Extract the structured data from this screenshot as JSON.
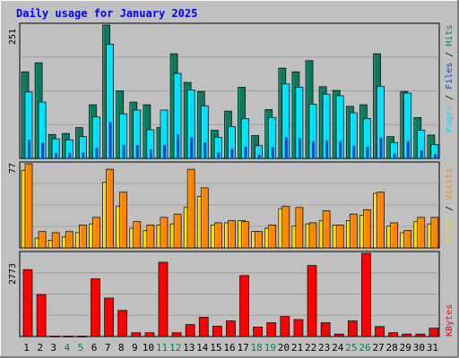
{
  "chart_data": {
    "type": "bar",
    "title": "Daily usage for January 2025",
    "x": [
      "1",
      "2",
      "3",
      "4",
      "5",
      "6",
      "7",
      "8",
      "9",
      "10",
      "11",
      "12",
      "13",
      "14",
      "15",
      "16",
      "17",
      "18",
      "19",
      "20",
      "21",
      "22",
      "23",
      "24",
      "25",
      "26",
      "27",
      "28",
      "29",
      "30",
      "31"
    ],
    "weekend_days": [
      "4",
      "5",
      "11",
      "12",
      "18",
      "19",
      "25",
      "26"
    ],
    "panels": [
      {
        "name": "pages-files-hits",
        "ymax_label": "251",
        "ymax": 251,
        "labels": [
          "Pages",
          "Files",
          "Hits"
        ],
        "series": [
          {
            "name": "Hits",
            "color": "#0b7a5f",
            "values": [
              163,
              180,
              45,
              47,
              58,
              101,
              251,
              127,
              106,
              101,
              58,
              197,
              143,
              126,
              53,
              89,
              134,
              43,
              92,
              170,
              163,
              184,
              135,
              128,
              98,
              101,
              197,
              41,
              126,
              77,
              44
            ]
          },
          {
            "name": "Files",
            "color": "#00e0ff",
            "values": [
              125,
              106,
              37,
              35,
              41,
              78,
              215,
              84,
              91,
              54,
              91,
              160,
              129,
              99,
              40,
              60,
              75,
              24,
              77,
              140,
              134,
              102,
              121,
              118,
              86,
              75,
              136,
              30,
              123,
              53,
              26
            ]
          },
          {
            "name": "Pages",
            "color": "#1446c8",
            "values": [
              35,
              30,
              10,
              10,
              11,
              20,
              68,
              25,
              25,
              17,
              25,
              45,
              40,
              30,
              11,
              18,
              22,
              7,
              21,
              40,
              38,
              32,
              34,
              33,
              24,
              22,
              39,
              9,
              33,
              15,
              8
            ]
          }
        ]
      },
      {
        "name": "sites-visits",
        "ymax_label": "77",
        "ymax": 77,
        "labels": [
          "Sites",
          "Visits"
        ],
        "series": [
          {
            "name": "Sites",
            "color": "#ffd000",
            "values": [
              71,
              9,
              7,
              10,
              14,
              22,
              60,
              38,
              18,
              16,
              21,
              22,
              37,
              47,
              21,
              23,
              25,
              15,
              18,
              36,
              20,
              22,
              25,
              21,
              25,
              30,
              50,
              20,
              14,
              24,
              22
            ]
          },
          {
            "name": "Visits",
            "color": "#ff8400",
            "values": [
              77,
              15,
              14,
              15,
              21,
              28,
              72,
              51,
              24,
              21,
              28,
              31,
              72,
              55,
              23,
              25,
              24,
              15,
              21,
              38,
              37,
              23,
              34,
              21,
              31,
              35,
              51,
              23,
              16,
              28,
              28
            ]
          }
        ]
      },
      {
        "name": "kbytes",
        "ymax_label": "2773",
        "ymax": 2773,
        "labels": [
          "KBytes"
        ],
        "series": [
          {
            "name": "KBytes",
            "color": "#ff0000",
            "values": [
              2228,
              1398,
              14,
              14,
              14,
              1922,
              1281,
              870,
              126,
              126,
              2475,
              126,
              398,
              644,
              344,
              521,
              2032,
              317,
              461,
              669,
              565,
              2367,
              461,
              83,
              521,
              2773,
              332,
              126,
              83,
              83,
              278
            ]
          }
        ]
      }
    ]
  },
  "colors": {
    "title": "#0000ff",
    "background": "#c0c0c0",
    "panel_bg": "#c0c0c0",
    "weekend": "#00805c",
    "weekday": "#000000"
  }
}
